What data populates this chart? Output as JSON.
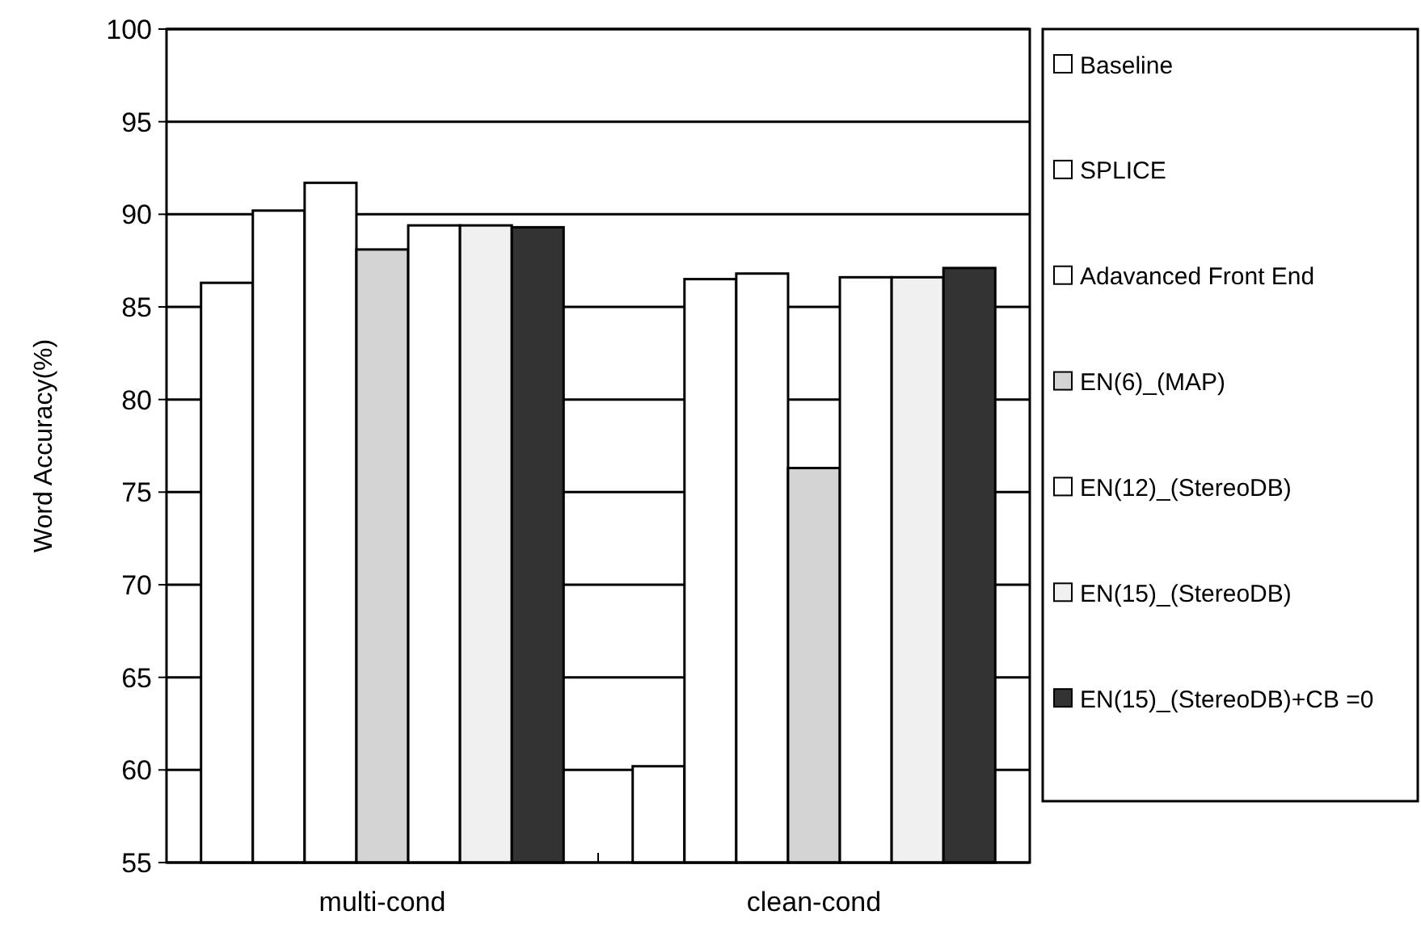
{
  "chart_data": {
    "type": "bar",
    "ylabel": "Word Accuracy(%)",
    "categories": [
      "multi-cond",
      "clean-cond"
    ],
    "series": [
      {
        "name": "Baseline",
        "color": "#ffffff",
        "values": [
          86.3,
          60.2
        ]
      },
      {
        "name": "SPLICE",
        "color": "#ffffff",
        "values": [
          90.2,
          86.5
        ]
      },
      {
        "name": "Adavanced Front End",
        "color": "#ffffff",
        "values": [
          91.7,
          86.8
        ]
      },
      {
        "name": "EN(6)_(MAP)",
        "color": "#d4d4d4",
        "values": [
          88.1,
          76.3
        ]
      },
      {
        "name": "EN(12)_(StereoDB)",
        "color": "#ffffff",
        "values": [
          89.4,
          86.6
        ]
      },
      {
        "name": "EN(15)_(StereoDB)",
        "color": "#f0f0f0",
        "values": [
          89.4,
          86.6
        ]
      },
      {
        "name": "EN(15)_(StereoDB)+CB =0",
        "color": "#333333",
        "values": [
          89.3,
          87.1
        ]
      }
    ],
    "ylim": [
      55,
      100
    ],
    "yticks": [
      55,
      60,
      65,
      70,
      75,
      80,
      85,
      90,
      95,
      100
    ],
    "grid": "y",
    "legend": "right"
  }
}
